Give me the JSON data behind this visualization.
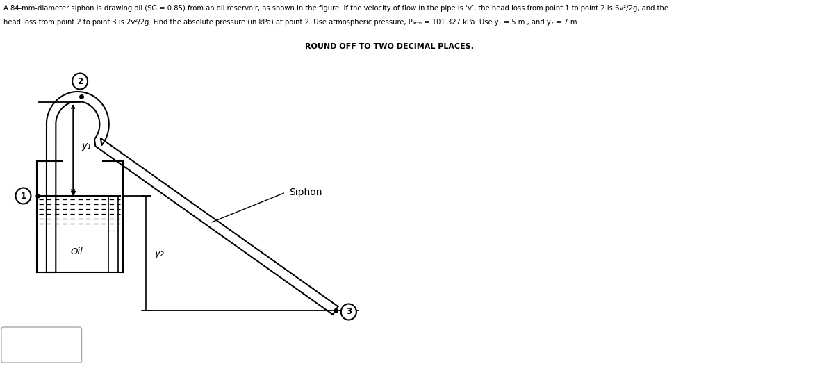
{
  "title_line1": "A 84-mm-diameter siphon is drawing oil (SG = 0.85) from an oil reservoir, as shown in the figure. If the velocity of flow in the pipe is ‘v’, the head loss from point 1 to point 2 is 6v²/2g, and the",
  "title_line2": "head loss from point 2 to point 3 is 2v²/2g. Find the absolute pressure (in kPa) at point 2. Use atmospheric pressure, Pₐₜₘ = 101.327 kPa. Use y₁ = 5 m., and y₂ = 7 m.",
  "subtitle": "ROUND OFF TO TWO DECIMAL PLACES.",
  "label_oil": "Oil",
  "label_siphon": "Siphon",
  "label_y1": "y₁",
  "label_y2": "y₂",
  "point1": "1",
  "point2": "2",
  "point3": "3",
  "bg_color": "#ffffff",
  "line_color": "#000000",
  "text_color": "#000000"
}
